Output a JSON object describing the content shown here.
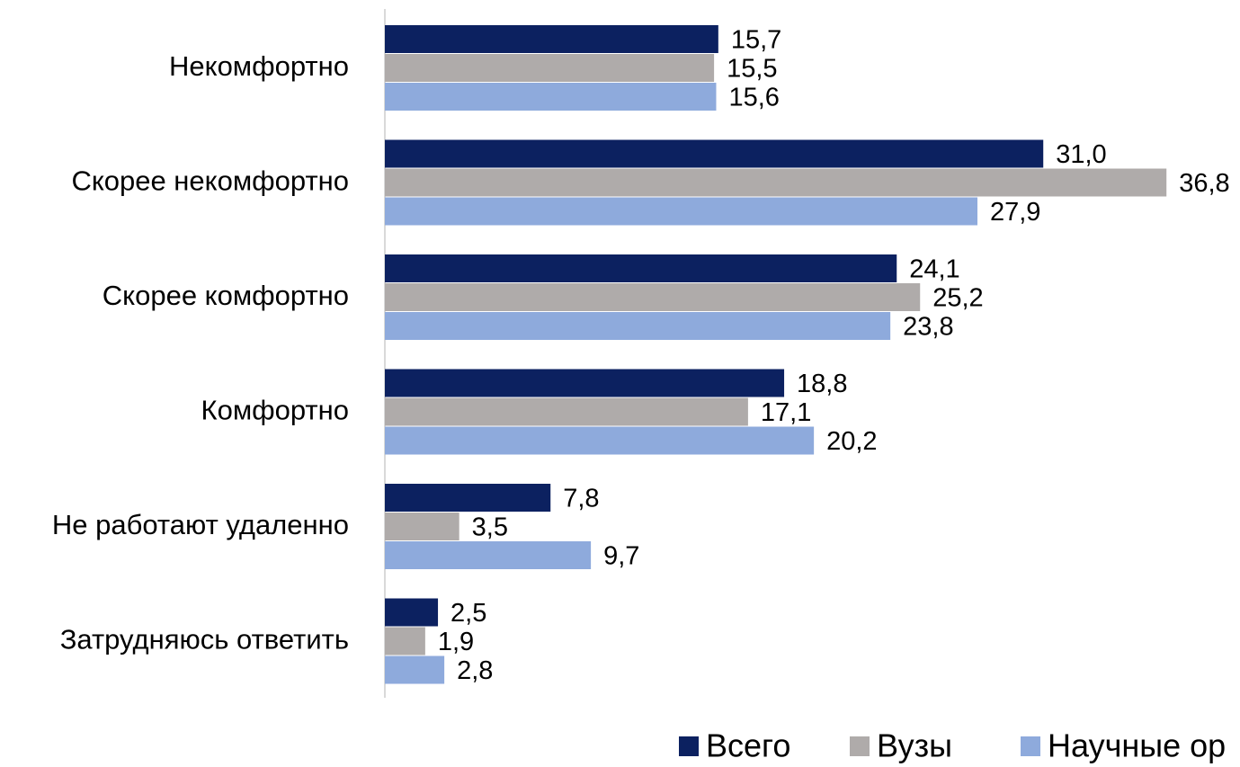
{
  "chart_data": {
    "type": "hbar",
    "categories": [
      "Некомфортно",
      "Скорее некомфортно",
      "Скорее комфортно",
      "Комфортно",
      "Не работают удаленно",
      "Затрудняюсь ответить"
    ],
    "series": [
      {
        "name": "Всего",
        "color": "#0c2160",
        "values": [
          15.7,
          31.0,
          24.1,
          18.8,
          7.8,
          2.5
        ],
        "value_labels": [
          "15,7",
          "31,0",
          "24,1",
          "18,8",
          "7,8",
          "2,5"
        ]
      },
      {
        "name": "Вузы",
        "color": "#afabaa",
        "values": [
          15.5,
          36.8,
          25.2,
          17.1,
          3.5,
          1.9
        ],
        "value_labels": [
          "15,5",
          "36,8",
          "25,2",
          "17,1",
          "3,5",
          "1,9"
        ]
      },
      {
        "name": "Научные ор",
        "color": "#8eaadc",
        "values": [
          15.6,
          27.9,
          23.8,
          20.2,
          9.7,
          2.8
        ],
        "value_labels": [
          "15,6",
          "27,9",
          "23,8",
          "20,2",
          "9,7",
          "2,8"
        ]
      }
    ],
    "legend": "bottom-right"
  }
}
